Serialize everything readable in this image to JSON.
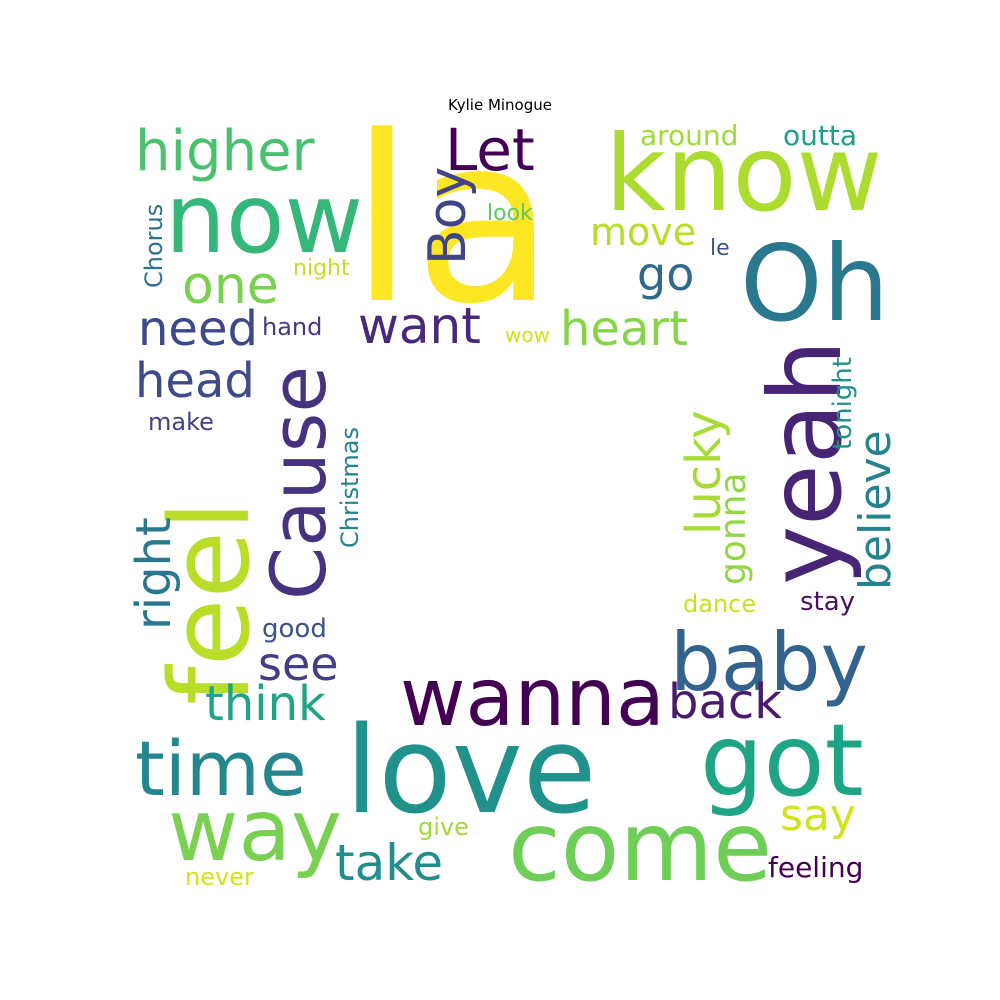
{
  "title": "Kylie Minogue",
  "words": [
    {
      "text": "la",
      "color": "#fde725"
    },
    {
      "text": "now",
      "color": "#35b779"
    },
    {
      "text": "know",
      "color": "#addc30"
    },
    {
      "text": "Oh",
      "color": "#2a788e"
    },
    {
      "text": "higher",
      "color": "#4ac16d"
    },
    {
      "text": "Let",
      "color": "#440154"
    },
    {
      "text": "Boy",
      "color": "#414487"
    },
    {
      "text": "around",
      "color": "#a0da39"
    },
    {
      "text": "outta",
      "color": "#1f9e89"
    },
    {
      "text": "look",
      "color": "#5ec962"
    },
    {
      "text": "move",
      "color": "#b5de2b"
    },
    {
      "text": "le",
      "color": "#3b528b"
    },
    {
      "text": "Chorus",
      "color": "#2c728e"
    },
    {
      "text": "night",
      "color": "#c2df23"
    },
    {
      "text": "go",
      "color": "#31688e"
    },
    {
      "text": "one",
      "color": "#7ad151"
    },
    {
      "text": "need",
      "color": "#3e4989"
    },
    {
      "text": "hand",
      "color": "#443983"
    },
    {
      "text": "want",
      "color": "#482878"
    },
    {
      "text": "wow",
      "color": "#d0e11c"
    },
    {
      "text": "heart",
      "color": "#86d549"
    },
    {
      "text": "head",
      "color": "#3e4a89"
    },
    {
      "text": "Cause",
      "color": "#46327e"
    },
    {
      "text": "make",
      "color": "#424086"
    },
    {
      "text": "Christmas",
      "color": "#25838e"
    },
    {
      "text": "feel",
      "color": "#b8de29"
    },
    {
      "text": "right",
      "color": "#2a778e"
    },
    {
      "text": "yeah",
      "color": "#482475"
    },
    {
      "text": "tonight",
      "color": "#21918c"
    },
    {
      "text": "believe",
      "color": "#26828e"
    },
    {
      "text": "lucky",
      "color": "#a8db34"
    },
    {
      "text": "gonna",
      "color": "#90d743"
    },
    {
      "text": "baby",
      "color": "#33638d"
    },
    {
      "text": "dance",
      "color": "#cae11f"
    },
    {
      "text": "stay",
      "color": "#471063"
    },
    {
      "text": "good",
      "color": "#3b528b"
    },
    {
      "text": "see",
      "color": "#433e85"
    },
    {
      "text": "think",
      "color": "#20a486"
    },
    {
      "text": "wanna",
      "color": "#440154"
    },
    {
      "text": "back",
      "color": "#481b6d"
    },
    {
      "text": "love",
      "color": "#21918c"
    },
    {
      "text": "time",
      "color": "#24868e"
    },
    {
      "text": "got",
      "color": "#20a486"
    },
    {
      "text": "way",
      "color": "#7ad151"
    },
    {
      "text": "say",
      "color": "#d2e21b"
    },
    {
      "text": "come",
      "color": "#6ece58"
    },
    {
      "text": "take",
      "color": "#228d8d"
    },
    {
      "text": "give",
      "color": "#9fda3a"
    },
    {
      "text": "never",
      "color": "#d5e21a"
    },
    {
      "text": "feeling",
      "color": "#440154"
    }
  ]
}
